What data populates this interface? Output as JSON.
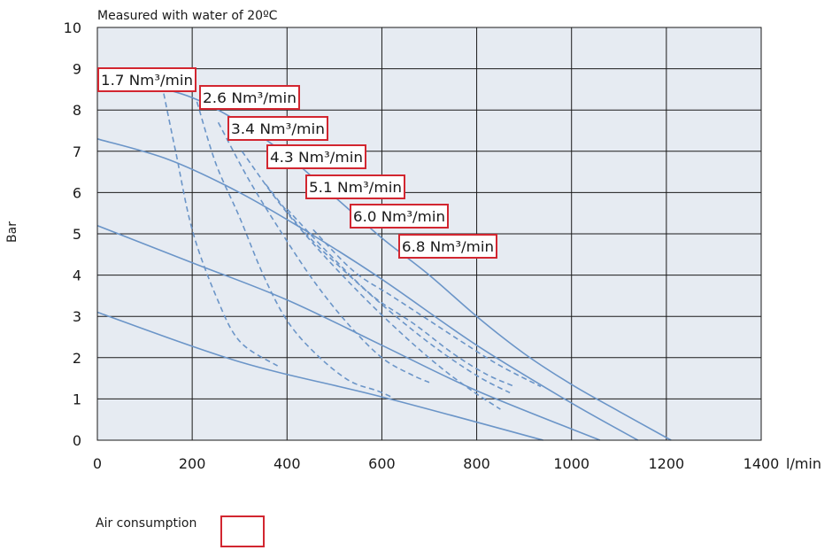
{
  "chart_data": {
    "type": "line",
    "title": "Measured with water of 20ºC",
    "xlabel": "l/min",
    "ylabel": "Bar",
    "xlim": [
      0,
      1400
    ],
    "ylim": [
      0,
      10
    ],
    "xticks": [
      "0",
      "200",
      "400",
      "600",
      "800",
      "1000",
      "1200",
      "1400"
    ],
    "yticks": [
      "0",
      "1",
      "2",
      "3",
      "4",
      "5",
      "6",
      "7",
      "8",
      "9",
      "10"
    ],
    "grid": true,
    "colors": {
      "plot_bg": "#e6ebf2",
      "curve": "#6b95c8",
      "grid": "#1a1a1a",
      "box": "#d22630"
    },
    "series": [
      {
        "style": "solid",
        "points": [
          [
            0,
            3.1
          ],
          [
            300,
            1.9
          ],
          [
            600,
            1.05
          ],
          [
            940,
            0
          ]
        ]
      },
      {
        "style": "solid",
        "points": [
          [
            0,
            5.2
          ],
          [
            200,
            4.3
          ],
          [
            400,
            3.4
          ],
          [
            600,
            2.3
          ],
          [
            800,
            1.2
          ],
          [
            1060,
            0
          ]
        ]
      },
      {
        "style": "solid",
        "points": [
          [
            0,
            7.3
          ],
          [
            150,
            6.8
          ],
          [
            300,
            6.0
          ],
          [
            450,
            5.0
          ],
          [
            600,
            3.9
          ],
          [
            800,
            2.3
          ],
          [
            1000,
            0.9
          ],
          [
            1140,
            0
          ]
        ]
      },
      {
        "style": "solid",
        "points": [
          [
            0,
            8.7
          ],
          [
            100,
            8.6
          ],
          [
            200,
            8.3
          ],
          [
            300,
            7.7
          ],
          [
            400,
            6.9
          ],
          [
            500,
            5.9
          ],
          [
            600,
            4.9
          ],
          [
            700,
            4.0
          ],
          [
            800,
            3.0
          ],
          [
            900,
            2.1
          ],
          [
            1000,
            1.35
          ],
          [
            1100,
            0.7
          ],
          [
            1210,
            0
          ]
        ]
      },
      {
        "style": "dashed",
        "points": [
          [
            140,
            8.4
          ],
          [
            165,
            7.0
          ],
          [
            200,
            5.1
          ],
          [
            250,
            3.5
          ],
          [
            300,
            2.4
          ],
          [
            380,
            1.8
          ]
        ]
      },
      {
        "style": "dashed",
        "points": [
          [
            210,
            8.2
          ],
          [
            250,
            6.7
          ],
          [
            300,
            5.4
          ],
          [
            350,
            4.0
          ],
          [
            400,
            2.9
          ],
          [
            460,
            2.1
          ],
          [
            530,
            1.45
          ],
          [
            590,
            1.2
          ],
          [
            620,
            1.05
          ]
        ]
      },
      {
        "style": "dashed",
        "points": [
          [
            255,
            7.7
          ],
          [
            320,
            6.3
          ],
          [
            390,
            5.0
          ],
          [
            460,
            3.8
          ],
          [
            530,
            2.8
          ],
          [
            600,
            2.0
          ],
          [
            660,
            1.6
          ],
          [
            700,
            1.4
          ]
        ]
      },
      {
        "style": "dashed",
        "points": [
          [
            305,
            7.0
          ],
          [
            380,
            5.8
          ],
          [
            460,
            4.7
          ],
          [
            550,
            3.6
          ],
          [
            640,
            2.6
          ],
          [
            720,
            1.8
          ],
          [
            790,
            1.2
          ],
          [
            850,
            0.75
          ]
        ]
      },
      {
        "style": "dashed",
        "points": [
          [
            355,
            6.2
          ],
          [
            440,
            5.0
          ],
          [
            540,
            3.9
          ],
          [
            640,
            2.9
          ],
          [
            730,
            2.1
          ],
          [
            810,
            1.5
          ],
          [
            870,
            1.15
          ]
        ]
      },
      {
        "style": "dashed",
        "points": [
          [
            400,
            5.6
          ],
          [
            490,
            4.5
          ],
          [
            580,
            3.5
          ],
          [
            670,
            2.8
          ],
          [
            750,
            2.1
          ],
          [
            820,
            1.6
          ],
          [
            880,
            1.3
          ]
        ]
      },
      {
        "style": "dashed",
        "points": [
          [
            455,
            5.1
          ],
          [
            540,
            4.1
          ],
          [
            620,
            3.5
          ],
          [
            700,
            2.9
          ],
          [
            780,
            2.3
          ],
          [
            850,
            1.8
          ],
          [
            935,
            1.3
          ]
        ]
      }
    ],
    "annotations": [
      {
        "text": "1.7 Nm³/min"
      },
      {
        "text": "2.6 Nm³/min"
      },
      {
        "text": "3.4 Nm³/min"
      },
      {
        "text": "4.3 Nm³/min"
      },
      {
        "text": "5.1 Nm³/min"
      },
      {
        "text": "6.0 Nm³/min"
      },
      {
        "text": "6.8 Nm³/min"
      }
    ],
    "legend": {
      "label": "Air consumption"
    }
  }
}
